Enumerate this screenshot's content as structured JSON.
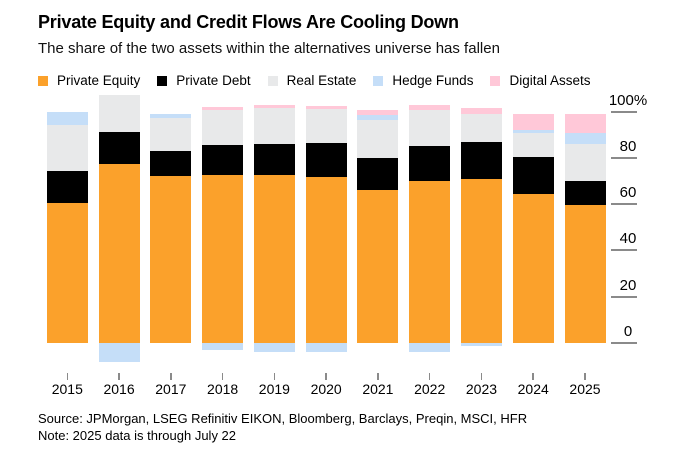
{
  "header": {
    "title": "Private Equity and Credit Flows Are Cooling Down",
    "subtitle": "The share of the two assets within the alternatives universe has fallen"
  },
  "footer": {
    "source": "Source: JPMorgan, LSEG Refinitiv EIKON, Bloomberg, Barclays, Preqin, MSCI, HFR",
    "note": "Note: 2025 data is through July 22"
  },
  "colors": {
    "private_equity": "#FBA12B",
    "private_debt": "#000000",
    "real_estate": "#E8E9EA",
    "hedge_funds": "#C5DEF8",
    "digital_assets": "#FFC8D8",
    "axis_tick": "#8a8a8a",
    "background": "#ffffff"
  },
  "chart_data": {
    "type": "bar",
    "variant": "stacked-percent-with-negatives",
    "title": "Private Equity and Credit Flows Are Cooling Down",
    "subtitle": "The share of the two assets within the alternatives universe has fallen",
    "categories": [
      "2015",
      "2016",
      "2017",
      "2018",
      "2019",
      "2020",
      "2021",
      "2022",
      "2023",
      "2024",
      "2025"
    ],
    "series": [
      {
        "name": "Private Equity",
        "color": "#FBA12B",
        "values": [
          60.5,
          77.5,
          72,
          72.5,
          72.5,
          71.5,
          66,
          70,
          71,
          64.5,
          59.5
        ]
      },
      {
        "name": "Private Debt",
        "color": "#000000",
        "values": [
          14,
          13.5,
          11,
          13,
          13.5,
          15,
          14,
          15,
          16,
          16,
          10.5
        ]
      },
      {
        "name": "Real Estate",
        "color": "#E8E9EA",
        "values": [
          19.5,
          16,
          14,
          15,
          15.5,
          14.5,
          16.5,
          15.5,
          12,
          10,
          16
        ]
      },
      {
        "name": "Hedge Funds",
        "color": "#C5DEF8",
        "values": [
          6,
          -8,
          2,
          -3,
          -4,
          -4,
          2,
          -4,
          -1.5,
          1.5,
          4.5
        ]
      },
      {
        "name": "Digital Assets",
        "color": "#FFC8D8",
        "values": [
          0,
          0,
          0,
          1.5,
          1.5,
          1.5,
          2,
          2.5,
          2.5,
          7,
          8.5
        ]
      }
    ],
    "xlabel": "",
    "ylabel": "",
    "y_ticks": [
      {
        "label": "100%",
        "value": 100
      },
      {
        "label": "80",
        "value": 80
      },
      {
        "label": "60",
        "value": 60
      },
      {
        "label": "40",
        "value": 40
      },
      {
        "label": "20",
        "value": 20
      },
      {
        "label": "0",
        "value": 0
      }
    ],
    "ylim": [
      -10,
      110
    ],
    "grid": false,
    "legend_position": "top",
    "axis_side": "right",
    "stack_order": "bottom-to-top as listed; negative values drawn below the zero baseline"
  }
}
